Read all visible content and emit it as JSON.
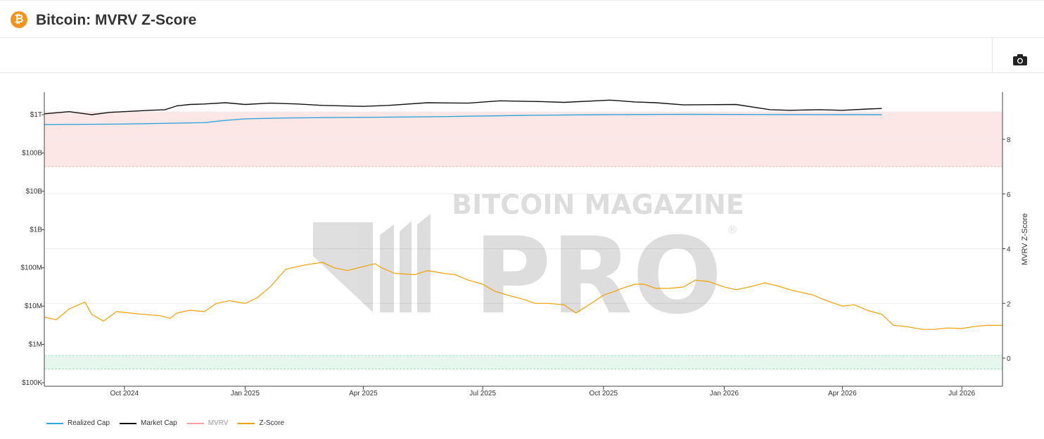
{
  "header": {
    "title": "Bitcoin: MVRV Z-Score",
    "icon": "bitcoin-icon",
    "icon_glyph": "₿"
  },
  "toolbar": {
    "screenshot_icon": "camera-icon"
  },
  "watermark": {
    "line1": "BITCOIN MAGAZINE",
    "line2": "PRO",
    "reg": "®"
  },
  "colors": {
    "realized_cap": "#33a6dd",
    "market_cap": "#111111",
    "mvrv": "#f4a3a3",
    "zscore": "#f2a000",
    "red_band": "#fde6e6",
    "green_band": "#e6f8ee"
  },
  "chart_data": {
    "type": "line",
    "x_range": [
      "2024-08-01",
      "2026-08-01"
    ],
    "x_ticks": [
      {
        "date": "2024-10-01",
        "label": "Oct 2024"
      },
      {
        "date": "2025-01-01",
        "label": "Jan 2025"
      },
      {
        "date": "2025-04-01",
        "label": "Apr 2025"
      },
      {
        "date": "2025-07-01",
        "label": "Jul 2025"
      },
      {
        "date": "2025-10-01",
        "label": "Oct 2025"
      },
      {
        "date": "2026-01-01",
        "label": "Jan 2026"
      },
      {
        "date": "2026-04-01",
        "label": "Apr 2026"
      },
      {
        "date": "2026-07-01",
        "label": "Jul 2026"
      }
    ],
    "y_left": {
      "scale": "log",
      "ticks": [
        {
          "value": 100000,
          "label": "$100K"
        },
        {
          "value": 1000000,
          "label": "$1M"
        },
        {
          "value": 10000000,
          "label": "$10M"
        },
        {
          "value": 100000000,
          "label": "$100M"
        },
        {
          "value": 1000000000,
          "label": "$1B"
        },
        {
          "value": 10000000000,
          "label": "$10B"
        },
        {
          "value": 100000000000,
          "label": "$100B"
        },
        {
          "value": 1000000000000,
          "label": "$1T"
        }
      ]
    },
    "y_right": {
      "label": "MVRV Z-Score",
      "range": [
        -0.4,
        9.3
      ],
      "ticks": [
        0,
        2,
        4,
        6,
        8
      ]
    },
    "bands": [
      {
        "name": "red-zone",
        "from": 7,
        "to": 9
      },
      {
        "name": "green-zone",
        "from": -0.4,
        "to": 0.1
      }
    ],
    "series": [
      {
        "name": "Realized Cap",
        "axis": "left",
        "points": [
          [
            "2024-08-01",
            550
          ],
          [
            "2024-10-01",
            570
          ],
          [
            "2024-12-01",
            620
          ],
          [
            "2024-12-15",
            700
          ],
          [
            "2025-01-01",
            780
          ],
          [
            "2025-02-01",
            820
          ],
          [
            "2025-04-01",
            850
          ],
          [
            "2025-06-01",
            890
          ],
          [
            "2025-08-01",
            960
          ],
          [
            "2025-10-01",
            1000
          ],
          [
            "2025-12-01",
            1020
          ],
          [
            "2026-02-01",
            1010
          ],
          [
            "2026-05-01",
            1000
          ]
        ]
      },
      {
        "name": "Market Cap",
        "axis": "left",
        "points": [
          [
            "2024-08-01",
            1050
          ],
          [
            "2024-08-20",
            1200
          ],
          [
            "2024-09-06",
            1000
          ],
          [
            "2024-09-20",
            1150
          ],
          [
            "2024-10-01",
            1200
          ],
          [
            "2024-10-20",
            1300
          ],
          [
            "2024-11-01",
            1350
          ],
          [
            "2024-11-10",
            1700
          ],
          [
            "2024-11-20",
            1850
          ],
          [
            "2024-12-01",
            1900
          ],
          [
            "2024-12-17",
            2050
          ],
          [
            "2025-01-01",
            1850
          ],
          [
            "2025-01-20",
            2000
          ],
          [
            "2025-02-10",
            1900
          ],
          [
            "2025-03-01",
            1750
          ],
          [
            "2025-04-01",
            1650
          ],
          [
            "2025-04-20",
            1750
          ],
          [
            "2025-05-20",
            2050
          ],
          [
            "2025-06-20",
            2000
          ],
          [
            "2025-07-14",
            2300
          ],
          [
            "2025-08-15",
            2200
          ],
          [
            "2025-09-01",
            2100
          ],
          [
            "2025-10-06",
            2400
          ],
          [
            "2025-10-25",
            2150
          ],
          [
            "2025-11-10",
            2050
          ],
          [
            "2025-12-01",
            1800
          ],
          [
            "2026-01-10",
            1850
          ],
          [
            "2026-02-05",
            1350
          ],
          [
            "2026-02-20",
            1300
          ],
          [
            "2026-03-15",
            1350
          ],
          [
            "2026-04-01",
            1300
          ],
          [
            "2026-04-20",
            1400
          ],
          [
            "2026-05-01",
            1450
          ]
        ]
      },
      {
        "name": "MVRV",
        "axis": "right",
        "points": []
      },
      {
        "name": "Z-Score",
        "axis": "right",
        "points": [
          [
            "2024-08-01",
            1.5
          ],
          [
            "2024-08-10",
            1.4
          ],
          [
            "2024-08-20",
            1.8
          ],
          [
            "2024-09-01",
            2.05
          ],
          [
            "2024-09-06",
            1.6
          ],
          [
            "2024-09-15",
            1.35
          ],
          [
            "2024-09-25",
            1.7
          ],
          [
            "2024-10-05",
            1.65
          ],
          [
            "2024-10-15",
            1.6
          ],
          [
            "2024-10-28",
            1.55
          ],
          [
            "2024-11-05",
            1.45
          ],
          [
            "2024-11-10",
            1.65
          ],
          [
            "2024-11-20",
            1.75
          ],
          [
            "2024-12-01",
            1.7
          ],
          [
            "2024-12-10",
            2.0
          ],
          [
            "2024-12-20",
            2.1
          ],
          [
            "2025-01-01",
            2.0
          ],
          [
            "2025-01-10",
            2.2
          ],
          [
            "2025-01-20",
            2.6
          ],
          [
            "2025-02-01",
            3.25
          ],
          [
            "2025-02-15",
            3.4
          ],
          [
            "2025-03-01",
            3.5
          ],
          [
            "2025-03-10",
            3.3
          ],
          [
            "2025-03-20",
            3.2
          ],
          [
            "2025-04-01",
            3.35
          ],
          [
            "2025-04-10",
            3.45
          ],
          [
            "2025-04-15",
            3.3
          ],
          [
            "2025-04-25",
            3.1
          ],
          [
            "2025-05-10",
            3.05
          ],
          [
            "2025-05-20",
            3.2
          ],
          [
            "2025-06-01",
            3.1
          ],
          [
            "2025-06-10",
            3.05
          ],
          [
            "2025-06-20",
            2.85
          ],
          [
            "2025-07-01",
            2.7
          ],
          [
            "2025-07-10",
            2.45
          ],
          [
            "2025-07-20",
            2.3
          ],
          [
            "2025-08-01",
            2.15
          ],
          [
            "2025-08-10",
            2.0
          ],
          [
            "2025-08-20",
            2.0
          ],
          [
            "2025-09-01",
            1.95
          ],
          [
            "2025-09-10",
            1.65
          ],
          [
            "2025-09-20",
            1.95
          ],
          [
            "2025-10-01",
            2.3
          ],
          [
            "2025-10-10",
            2.45
          ],
          [
            "2025-10-15",
            2.55
          ],
          [
            "2025-10-25",
            2.7
          ],
          [
            "2025-11-01",
            2.7
          ],
          [
            "2025-11-10",
            2.55
          ],
          [
            "2025-11-20",
            2.55
          ],
          [
            "2025-12-01",
            2.6
          ],
          [
            "2025-12-10",
            2.85
          ],
          [
            "2025-12-20",
            2.8
          ],
          [
            "2026-01-01",
            2.6
          ],
          [
            "2026-01-10",
            2.5
          ],
          [
            "2026-01-20",
            2.6
          ],
          [
            "2026-02-01",
            2.75
          ],
          [
            "2026-02-10",
            2.65
          ],
          [
            "2026-02-20",
            2.5
          ],
          [
            "2026-03-01",
            2.4
          ],
          [
            "2026-03-10",
            2.3
          ],
          [
            "2026-03-20",
            2.1
          ],
          [
            "2026-04-01",
            1.9
          ],
          [
            "2026-04-10",
            1.95
          ],
          [
            "2026-04-20",
            1.75
          ],
          [
            "2026-05-01",
            1.6
          ],
          [
            "2026-05-10",
            1.2
          ],
          [
            "2026-05-20",
            1.15
          ],
          [
            "2026-06-01",
            1.05
          ],
          [
            "2026-06-10",
            1.05
          ],
          [
            "2026-06-20",
            1.1
          ],
          [
            "2026-07-01",
            1.08
          ],
          [
            "2026-07-10",
            1.15
          ],
          [
            "2026-07-20",
            1.2
          ],
          [
            "2026-08-01",
            1.2
          ]
        ]
      }
    ],
    "legend": [
      "Realized Cap",
      "Market Cap",
      "MVRV",
      "Z-Score"
    ],
    "legend_position": "bottom-left",
    "grid": true
  }
}
